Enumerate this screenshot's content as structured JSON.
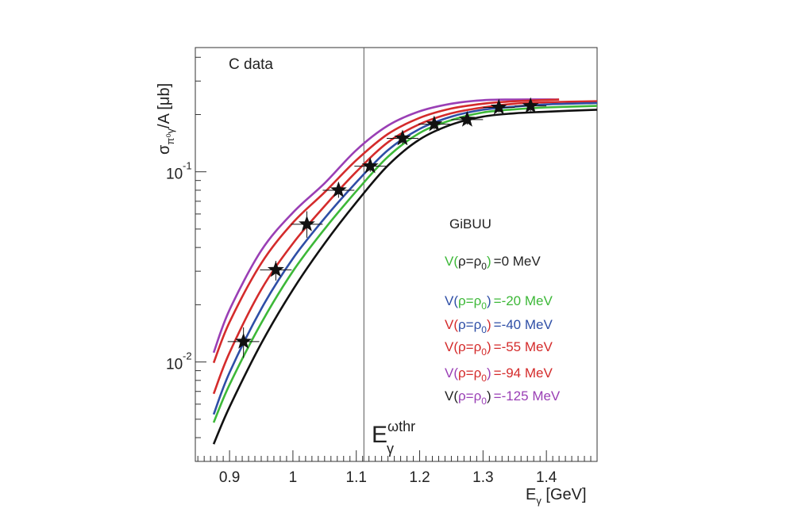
{
  "chart_data": {
    "type": "line",
    "yscale": "log",
    "xlim": [
      0.846,
      1.48
    ],
    "ylim": [
      0.003,
      0.45
    ],
    "xticks": [
      0.9,
      1.0,
      1.1,
      1.2,
      1.3,
      1.4
    ],
    "xtick_labels": [
      "0.9",
      "1",
      "1.1",
      "1.2",
      "1.3",
      "1.4"
    ],
    "ytick_labels": [
      {
        "value": 0.1,
        "base": "10",
        "exp": "-1"
      },
      {
        "value": 0.01,
        "base": "10",
        "exp": "-2"
      }
    ],
    "xlabel": {
      "main": "E",
      "sub": "γ",
      "unit": " [GeV]"
    },
    "ylabel": {
      "sigma": "σ",
      "sub": "π⁰γ",
      "rest": "/A [μb]"
    },
    "threshold": {
      "x": 1.112,
      "label_main": "E",
      "label_sup": "ωthr",
      "label_sub": "γ"
    },
    "data_label": "C data",
    "legend_title": "GiBUU",
    "legend": [
      {
        "prefix": "V(",
        "rho": "ρ=ρ",
        "rho_sub": "0",
        "suffix": ")",
        "value": "=0 MeV",
        "color": "#3db838",
        "rho_color": "#222222",
        "value_color": "#222222"
      },
      {
        "prefix": "V(",
        "rho": "ρ=ρ",
        "rho_sub": "0",
        "suffix": ")",
        "value": "=-20 MeV",
        "color": "#2e4ea6",
        "rho_color": "#3db838",
        "value_color": "#3db838"
      },
      {
        "prefix": "V(",
        "rho": "ρ=ρ",
        "rho_sub": "0",
        "suffix": ")",
        "value": "=-40 MeV",
        "color": "#d42b2b",
        "rho_color": "#2e4ea6",
        "value_color": "#2e4ea6"
      },
      {
        "prefix": "V(",
        "rho": "ρ=ρ",
        "rho_sub": "0",
        "suffix": ")",
        "value": "=-55 MeV",
        "color": "#d42b2b",
        "rho_color": "#d42b2b",
        "value_color": "#d42b2b"
      },
      {
        "prefix": "V(",
        "rho": "ρ=ρ",
        "rho_sub": "0",
        "suffix": ")",
        "value": "=-94 MeV",
        "color": "#9a3fb5",
        "rho_color": "#d42b2b",
        "value_color": "#d42b2b"
      },
      {
        "prefix": "V(",
        "rho": "ρ=ρ",
        "rho_sub": "0",
        "suffix": ")",
        "value": "=-125 MeV",
        "color": "#222222",
        "rho_color": "#9a3fb5",
        "value_color": "#9a3fb5"
      }
    ],
    "series": [
      {
        "color": "#9a3fb5",
        "points": [
          [
            0.875,
            0.0112
          ],
          [
            0.9,
            0.0188
          ],
          [
            0.95,
            0.0385
          ],
          [
            1.0,
            0.061
          ],
          [
            1.05,
            0.087
          ],
          [
            1.1,
            0.13
          ],
          [
            1.15,
            0.175
          ],
          [
            1.2,
            0.208
          ],
          [
            1.25,
            0.228
          ],
          [
            1.3,
            0.238
          ],
          [
            1.35,
            0.24
          ],
          [
            1.42,
            0.24
          ]
        ]
      },
      {
        "color": "#d42b2b",
        "points": [
          [
            0.875,
            0.0099
          ],
          [
            0.9,
            0.0162
          ],
          [
            0.95,
            0.033
          ],
          [
            1.0,
            0.054
          ],
          [
            1.05,
            0.078
          ],
          [
            1.1,
            0.115
          ],
          [
            1.15,
            0.158
          ],
          [
            1.2,
            0.192
          ],
          [
            1.25,
            0.215
          ],
          [
            1.3,
            0.228
          ],
          [
            1.35,
            0.235
          ],
          [
            1.42,
            0.24
          ]
        ]
      },
      {
        "color": "#d42b2b",
        "points": [
          [
            0.875,
            0.0068
          ],
          [
            0.9,
            0.0112
          ],
          [
            0.95,
            0.024
          ],
          [
            1.0,
            0.042
          ],
          [
            1.05,
            0.066
          ],
          [
            1.1,
            0.1
          ],
          [
            1.15,
            0.143
          ],
          [
            1.2,
            0.178
          ],
          [
            1.25,
            0.203
          ],
          [
            1.3,
            0.218
          ],
          [
            1.35,
            0.228
          ],
          [
            1.4,
            0.232
          ],
          [
            1.48,
            0.235
          ]
        ]
      },
      {
        "color": "#2e4ea6",
        "points": [
          [
            0.875,
            0.0053
          ],
          [
            0.9,
            0.0088
          ],
          [
            0.95,
            0.019
          ],
          [
            1.0,
            0.035
          ],
          [
            1.05,
            0.057
          ],
          [
            1.1,
            0.088
          ],
          [
            1.15,
            0.13
          ],
          [
            1.2,
            0.168
          ],
          [
            1.25,
            0.195
          ],
          [
            1.3,
            0.212
          ],
          [
            1.35,
            0.22
          ],
          [
            1.4,
            0.226
          ],
          [
            1.48,
            0.23
          ]
        ]
      },
      {
        "color": "#3db838",
        "points": [
          [
            0.875,
            0.0048
          ],
          [
            0.9,
            0.0076
          ],
          [
            0.95,
            0.016
          ],
          [
            1.0,
            0.03
          ],
          [
            1.05,
            0.05
          ],
          [
            1.1,
            0.079
          ],
          [
            1.15,
            0.12
          ],
          [
            1.2,
            0.16
          ],
          [
            1.25,
            0.187
          ],
          [
            1.3,
            0.205
          ],
          [
            1.35,
            0.213
          ],
          [
            1.4,
            0.218
          ],
          [
            1.48,
            0.222
          ]
        ]
      },
      {
        "color": "#111111",
        "points": [
          [
            0.875,
            0.0037
          ],
          [
            0.9,
            0.0058
          ],
          [
            0.95,
            0.0125
          ],
          [
            1.0,
            0.024
          ],
          [
            1.05,
            0.042
          ],
          [
            1.1,
            0.069
          ],
          [
            1.15,
            0.108
          ],
          [
            1.2,
            0.148
          ],
          [
            1.25,
            0.177
          ],
          [
            1.3,
            0.195
          ],
          [
            1.35,
            0.203
          ],
          [
            1.4,
            0.207
          ],
          [
            1.48,
            0.212
          ]
        ]
      }
    ],
    "data_points": [
      {
        "x": 0.922,
        "y": 0.0128,
        "xerr": 0.025,
        "ylo": 0.0105,
        "yhi": 0.0152
      },
      {
        "x": 0.973,
        "y": 0.0305,
        "xerr": 0.025,
        "ylo": 0.0268,
        "yhi": 0.034
      },
      {
        "x": 1.022,
        "y": 0.053,
        "xerr": 0.025,
        "ylo": 0.045,
        "yhi": 0.062
      },
      {
        "x": 1.072,
        "y": 0.08,
        "xerr": 0.025,
        "ylo": 0.073,
        "yhi": 0.088
      },
      {
        "x": 1.122,
        "y": 0.107,
        "xerr": 0.025,
        "ylo": 0.1,
        "yhi": 0.114
      },
      {
        "x": 1.173,
        "y": 0.15,
        "xerr": 0.025,
        "ylo": 0.14,
        "yhi": 0.16
      },
      {
        "x": 1.223,
        "y": 0.178,
        "xerr": 0.025,
        "ylo": 0.167,
        "yhi": 0.19
      },
      {
        "x": 1.275,
        "y": 0.188,
        "xerr": 0.025,
        "ylo": 0.177,
        "yhi": 0.2
      },
      {
        "x": 1.325,
        "y": 0.218,
        "xerr": 0.025,
        "ylo": 0.205,
        "yhi": 0.232
      },
      {
        "x": 1.375,
        "y": 0.222,
        "xerr": 0.025,
        "ylo": 0.208,
        "yhi": 0.238
      }
    ]
  }
}
